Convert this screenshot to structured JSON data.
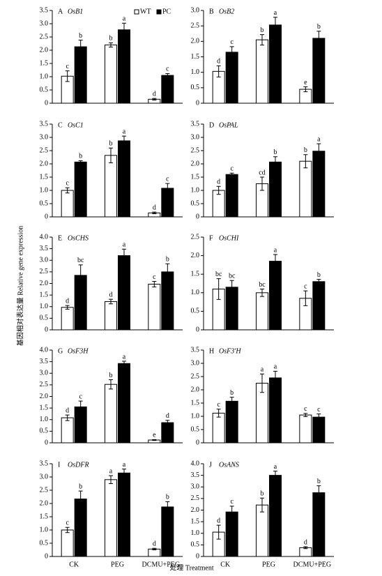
{
  "ylabel": "基因相对表达量 Relative gene expression",
  "xlabel": "处理 Treatment",
  "chart_data": [
    {
      "type": "bar",
      "panel": "A",
      "title": "OsB1",
      "legend": "top right",
      "ylim": [
        0,
        3.5
      ],
      "yticks": [
        0,
        0.5,
        {
          "value": 1,
          "label": "1.0"
        },
        1.5,
        {
          "value": 2,
          "label": "2.0"
        },
        2.5,
        {
          "value": 3,
          "label": "3.0"
        },
        3.5
      ],
      "series": [
        {
          "name": "WT",
          "color": "#ffffff",
          "values": [
            1.02,
            2.2,
            0.15
          ],
          "errors": [
            0.2,
            0.08,
            0.03
          ],
          "labels": [
            "c",
            "b",
            "d"
          ]
        },
        {
          "name": "PC",
          "color": "#000000",
          "values": [
            2.13,
            2.77,
            1.05
          ],
          "errors": [
            0.25,
            0.25,
            0.07
          ],
          "labels": [
            "b",
            "a",
            "c"
          ]
        }
      ]
    },
    {
      "type": "bar",
      "panel": "B",
      "title": "OsB2",
      "ylim": [
        0,
        3
      ],
      "yticks": [
        0,
        0.5,
        {
          "value": 1,
          "label": "1.0"
        },
        1.5,
        {
          "value": 2,
          "label": "2.0"
        },
        2.5,
        {
          "value": 3,
          "label": "3.0"
        }
      ],
      "series": [
        {
          "color": "#ffffff",
          "values": [
            1.03,
            2.05,
            0.45
          ],
          "errors": [
            0.18,
            0.17,
            0.08
          ],
          "labels": [
            "d",
            "b",
            "e"
          ]
        },
        {
          "color": "#000000",
          "values": [
            1.65,
            2.53,
            2.1
          ],
          "errors": [
            0.18,
            0.25,
            0.23
          ],
          "labels": [
            "c",
            "a",
            "b"
          ]
        }
      ]
    },
    {
      "type": "bar",
      "panel": "C",
      "title": "OsC1",
      "ylim": [
        0,
        3.5
      ],
      "yticks": [
        0,
        0.5,
        {
          "value": 1,
          "label": "1.0"
        },
        1.5,
        {
          "value": 2,
          "label": "2.0"
        },
        2.5,
        {
          "value": 3,
          "label": "3.0"
        },
        3.5
      ],
      "series": [
        {
          "color": "#ffffff",
          "values": [
            1.0,
            2.32,
            0.15
          ],
          "errors": [
            0.1,
            0.28,
            0.03
          ],
          "labels": [
            "c",
            "b",
            "d"
          ]
        },
        {
          "color": "#000000",
          "values": [
            2.07,
            2.87,
            1.08
          ],
          "errors": [
            0.05,
            0.18,
            0.18
          ],
          "labels": [
            "b",
            "a",
            "c"
          ]
        }
      ]
    },
    {
      "type": "bar",
      "panel": "D",
      "title": "OsPAL",
      "ylim": [
        0,
        3.5
      ],
      "yticks": [
        0,
        0.5,
        {
          "value": 1,
          "label": "1.0"
        },
        1.5,
        {
          "value": 2,
          "label": "2.0"
        },
        2.5,
        {
          "value": 3,
          "label": "3.0"
        },
        3.5
      ],
      "series": [
        {
          "color": "#ffffff",
          "values": [
            1.0,
            1.25,
            2.1
          ],
          "errors": [
            0.15,
            0.25,
            0.25
          ],
          "labels": [
            "d",
            "cd",
            "b"
          ]
        },
        {
          "color": "#000000",
          "values": [
            1.6,
            2.07,
            2.48
          ],
          "errors": [
            0.05,
            0.2,
            0.28
          ],
          "labels": [
            "c",
            "b",
            "a"
          ]
        }
      ]
    },
    {
      "type": "bar",
      "panel": "E",
      "title": "OsCHS",
      "ylim": [
        0,
        4
      ],
      "yticks": [
        0,
        0.5,
        {
          "value": 1,
          "label": "1.0"
        },
        1.5,
        {
          "value": 2,
          "label": "2.0"
        },
        2.5,
        {
          "value": 3,
          "label": "3.0"
        },
        3.5,
        {
          "value": 4,
          "label": "4.0"
        }
      ],
      "series": [
        {
          "color": "#ffffff",
          "values": [
            0.97,
            1.22,
            1.97
          ],
          "errors": [
            0.08,
            0.1,
            0.12
          ],
          "labels": [
            "d",
            "d",
            "c"
          ]
        },
        {
          "color": "#000000",
          "values": [
            2.35,
            3.2,
            2.5
          ],
          "errors": [
            0.45,
            0.28,
            0.35
          ],
          "labels": [
            "bc",
            "a",
            "b"
          ]
        }
      ]
    },
    {
      "type": "bar",
      "panel": "F",
      "title": "OsCHI",
      "ylim": [
        0,
        2.5
      ],
      "yticks": [
        0,
        0.5,
        {
          "value": 1,
          "label": "1.0"
        },
        1.5,
        {
          "value": 2,
          "label": "2.0"
        },
        2.5
      ],
      "series": [
        {
          "color": "#ffffff",
          "values": [
            1.1,
            1.0,
            0.85
          ],
          "errors": [
            0.28,
            0.1,
            0.2
          ],
          "labels": [
            "bc",
            "bc",
            "c"
          ]
        },
        {
          "color": "#000000",
          "values": [
            1.15,
            1.85,
            1.3
          ],
          "errors": [
            0.18,
            0.18,
            0.06
          ],
          "labels": [
            "bc",
            "a",
            "b"
          ]
        }
      ]
    },
    {
      "type": "bar",
      "panel": "G",
      "title": "OsF3H",
      "ylim": [
        0,
        4
      ],
      "yticks": [
        0,
        0.5,
        {
          "value": 1,
          "label": "1.0"
        },
        1.5,
        {
          "value": 2,
          "label": "2.0"
        },
        2.5,
        {
          "value": 3,
          "label": "3.0"
        },
        3.5,
        {
          "value": 4,
          "label": "4.0"
        }
      ],
      "series": [
        {
          "color": "#ffffff",
          "values": [
            1.08,
            2.52,
            0.12
          ],
          "errors": [
            0.12,
            0.2,
            0.02
          ],
          "labels": [
            "d",
            "b",
            "e"
          ]
        },
        {
          "color": "#000000",
          "values": [
            1.55,
            3.42,
            0.87
          ],
          "errors": [
            0.25,
            0.1,
            0.1
          ],
          "labels": [
            "c",
            "a",
            "d"
          ]
        }
      ]
    },
    {
      "type": "bar",
      "panel": "H",
      "title": "OsF3'H",
      "ylim": [
        0,
        3.5
      ],
      "yticks": [
        0,
        0.5,
        {
          "value": 1,
          "label": "1.0"
        },
        1.5,
        {
          "value": 2,
          "label": "2.0"
        },
        2.5,
        {
          "value": 3,
          "label": "3.0"
        },
        3.5
      ],
      "series": [
        {
          "color": "#ffffff",
          "values": [
            1.12,
            2.25,
            1.05
          ],
          "errors": [
            0.15,
            0.35,
            0.06
          ],
          "labels": [
            "c",
            "a",
            "c"
          ]
        },
        {
          "color": "#000000",
          "values": [
            1.57,
            2.45,
            0.97
          ],
          "errors": [
            0.15,
            0.25,
            0.12
          ],
          "labels": [
            "b",
            "a",
            "c"
          ]
        }
      ]
    },
    {
      "type": "bar",
      "panel": "I",
      "title": "OsDFR",
      "categories": [
        "CK",
        "PEG",
        "DCMU+PEG"
      ],
      "ylim": [
        0,
        3.5
      ],
      "yticks": [
        0,
        0.5,
        {
          "value": 1,
          "label": "1.0"
        },
        1.5,
        {
          "value": 2,
          "label": "2.0"
        },
        2.5,
        {
          "value": 3,
          "label": "3.0"
        },
        3.5
      ],
      "series": [
        {
          "color": "#ffffff",
          "values": [
            1.0,
            2.9,
            0.28
          ],
          "errors": [
            0.1,
            0.15,
            0.03
          ],
          "labels": [
            "c",
            "a",
            "d"
          ]
        },
        {
          "color": "#000000",
          "values": [
            2.17,
            3.15,
            1.87
          ],
          "errors": [
            0.3,
            0.15,
            0.2
          ],
          "labels": [
            "b",
            "a",
            "b"
          ]
        }
      ]
    },
    {
      "type": "bar",
      "panel": "J",
      "title": "OsANS",
      "categories": [
        "CK",
        "PEG",
        "DCMU+PEG"
      ],
      "ylim": [
        0,
        4
      ],
      "yticks": [
        0,
        0.5,
        {
          "value": 1,
          "label": "1.0"
        },
        1.5,
        {
          "value": 2,
          "label": "2.0"
        },
        2.5,
        {
          "value": 3,
          "label": "3.0"
        },
        3.5,
        {
          "value": 4,
          "label": "4.0"
        }
      ],
      "series": [
        {
          "color": "#ffffff",
          "values": [
            1.05,
            2.22,
            0.38
          ],
          "errors": [
            0.3,
            0.3,
            0.04
          ],
          "labels": [
            "d",
            "b",
            "d"
          ]
        },
        {
          "color": "#000000",
          "values": [
            1.92,
            3.5,
            2.75
          ],
          "errors": [
            0.25,
            0.18,
            0.3
          ],
          "labels": [
            "c",
            "a",
            "b"
          ]
        }
      ]
    }
  ]
}
